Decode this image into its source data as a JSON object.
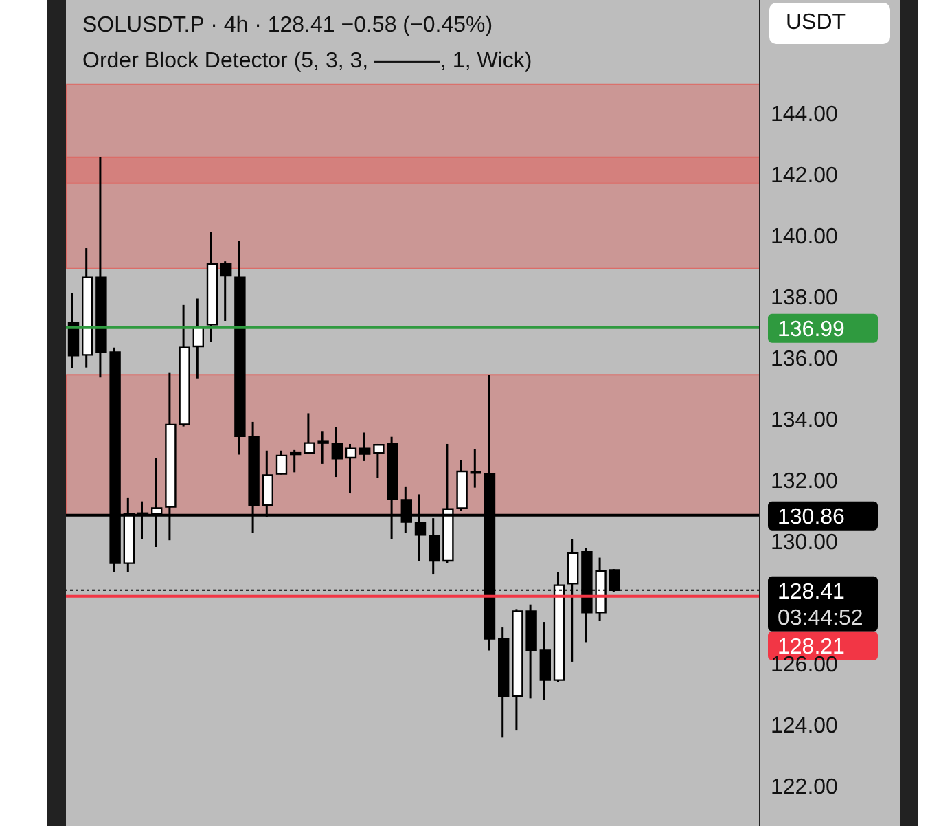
{
  "chart_data": {
    "type": "candlestick",
    "title": "SOLUSDT.P · 4h · 128.41  −0.58 (−0.45%)",
    "subtitle": "Order Block Detector (5, 3, 3, ———, 1, Wick)",
    "categories": [
      null,
      null,
      null,
      null,
      null,
      null,
      null,
      null,
      null,
      null,
      null,
      null,
      null,
      null,
      null,
      null,
      null,
      null,
      null,
      null,
      null,
      null,
      null,
      null,
      null,
      null,
      null,
      null,
      null,
      null,
      null,
      null,
      null,
      null,
      null,
      null,
      null,
      null,
      null,
      null,
      null,
      null,
      null,
      null,
      null,
      null,
      null,
      null,
      null,
      null
    ],
    "ohlc": [
      [
        137.16,
        138.11,
        135.68,
        136.08
      ],
      [
        136.1,
        139.59,
        135.69,
        138.63
      ],
      [
        138.63,
        142.56,
        135.36,
        136.19
      ],
      [
        136.19,
        136.34,
        128.99,
        129.29
      ],
      [
        129.29,
        131.44,
        129.0,
        130.91
      ],
      [
        130.9,
        131.31,
        130.07,
        130.88
      ],
      [
        130.91,
        132.74,
        129.82,
        131.09
      ],
      [
        131.13,
        135.51,
        130.04,
        133.82
      ],
      [
        133.83,
        137.73,
        133.76,
        136.34
      ],
      [
        136.38,
        137.94,
        135.33,
        137.01
      ],
      [
        137.09,
        140.12,
        136.53,
        139.07
      ],
      [
        139.07,
        139.16,
        137.21,
        138.69
      ],
      [
        138.63,
        139.82,
        132.84,
        133.44
      ],
      [
        133.42,
        133.91,
        130.27,
        131.19
      ],
      [
        131.19,
        132.97,
        130.79,
        132.17
      ],
      [
        132.21,
        132.97,
        132.19,
        132.81
      ],
      [
        132.85,
        132.99,
        132.26,
        132.88
      ],
      [
        132.89,
        134.19,
        132.88,
        133.22
      ],
      [
        133.24,
        133.61,
        132.54,
        133.22
      ],
      [
        133.19,
        133.74,
        132.11,
        132.71
      ],
      [
        132.74,
        133.19,
        131.57,
        133.04
      ],
      [
        133.04,
        133.56,
        132.63,
        132.86
      ],
      [
        132.89,
        133.19,
        132.07,
        133.16
      ],
      [
        133.19,
        133.42,
        130.07,
        131.39
      ],
      [
        131.36,
        131.8,
        130.27,
        130.64
      ],
      [
        130.61,
        131.54,
        129.37,
        130.22
      ],
      [
        130.19,
        130.76,
        128.92,
        129.37
      ],
      [
        129.37,
        133.19,
        129.3,
        131.06
      ],
      [
        131.09,
        132.66,
        131.0,
        132.29
      ],
      [
        132.26,
        133.01,
        131.76,
        132.24
      ],
      [
        132.21,
        135.44,
        126.44,
        126.82
      ],
      [
        126.82,
        127.19,
        123.59,
        124.94
      ],
      [
        124.94,
        127.79,
        123.82,
        127.72
      ],
      [
        127.72,
        127.94,
        124.87,
        126.44
      ],
      [
        126.44,
        127.37,
        124.82,
        125.47
      ],
      [
        125.47,
        128.99,
        125.4,
        128.57
      ],
      [
        128.62,
        130.09,
        126.07,
        129.62
      ],
      [
        129.66,
        129.79,
        126.71,
        127.68
      ],
      [
        127.68,
        129.47,
        127.41,
        129.03
      ],
      [
        129.07,
        129.1,
        128.35,
        128.41
      ],
      null,
      null,
      null,
      null,
      null,
      null,
      null,
      null,
      null,
      null
    ],
    "colors": [
      "#000000",
      "#ffffff",
      "#000000",
      "#000000",
      "#ffffff",
      "#000000",
      "#ffffff",
      "#ffffff",
      "#ffffff",
      "#ffffff",
      "#ffffff",
      "#000000",
      "#000000",
      "#000000",
      "#ffffff",
      "#ffffff",
      "#ffffff",
      "#ffffff",
      "#000000",
      "#000000",
      "#ffffff",
      "#000000",
      "#ffffff",
      "#000000",
      "#000000",
      "#000000",
      "#000000",
      "#ffffff",
      "#ffffff",
      "#000000",
      "#000000",
      "#000000",
      "#ffffff",
      "#000000",
      "#000000",
      "#ffffff",
      "#ffffff",
      "#000000",
      "#ffffff",
      "#000000",
      null,
      null,
      null,
      null,
      null,
      null,
      null,
      null,
      null,
      null
    ],
    "ylim": [
      120.7,
      147.7
    ],
    "yticks": [
      {
        "value": 122,
        "label": "122.00"
      },
      {
        "value": 124,
        "label": "124.00"
      },
      {
        "value": 126,
        "label": "126.00"
      },
      {
        "value": 130,
        "label": "130.00"
      },
      {
        "value": 132,
        "label": "132.00"
      },
      {
        "value": 134,
        "label": "134.00"
      },
      {
        "value": 136,
        "label": "136.00"
      },
      {
        "value": 138,
        "label": "138.00"
      },
      {
        "value": 140,
        "label": "140.00"
      },
      {
        "value": 142,
        "label": "142.00"
      },
      {
        "value": 144,
        "label": "144.00"
      }
    ],
    "tick_labels": "y",
    "bands": [
      {
        "axis": "y",
        "from": 141.71,
        "to": 144.94,
        "color": "#e0605a"
      },
      {
        "axis": "y",
        "from": 138.92,
        "to": 142.56,
        "color": "#e0605a"
      },
      {
        "axis": "y",
        "from": 130.86,
        "to": 135.45,
        "color": "#e0605a"
      }
    ],
    "ref_lines": [
      {
        "axis": "y",
        "value": 136.99,
        "label": "136.99",
        "color": "#2f9a3f",
        "line_style": "solid"
      },
      {
        "axis": "y",
        "value": 130.86,
        "label": "130.86",
        "color": "#000000",
        "line_style": "solid"
      },
      {
        "axis": "y",
        "value": 128.41,
        "label": "128.41",
        "color": "#000000",
        "line_style": "dotted"
      },
      {
        "axis": "y",
        "value": 128.21,
        "label": "128.21",
        "color": "#f23645",
        "line_style": "solid"
      }
    ],
    "annotations": [
      "USDT",
      "03:44:52"
    ]
  }
}
